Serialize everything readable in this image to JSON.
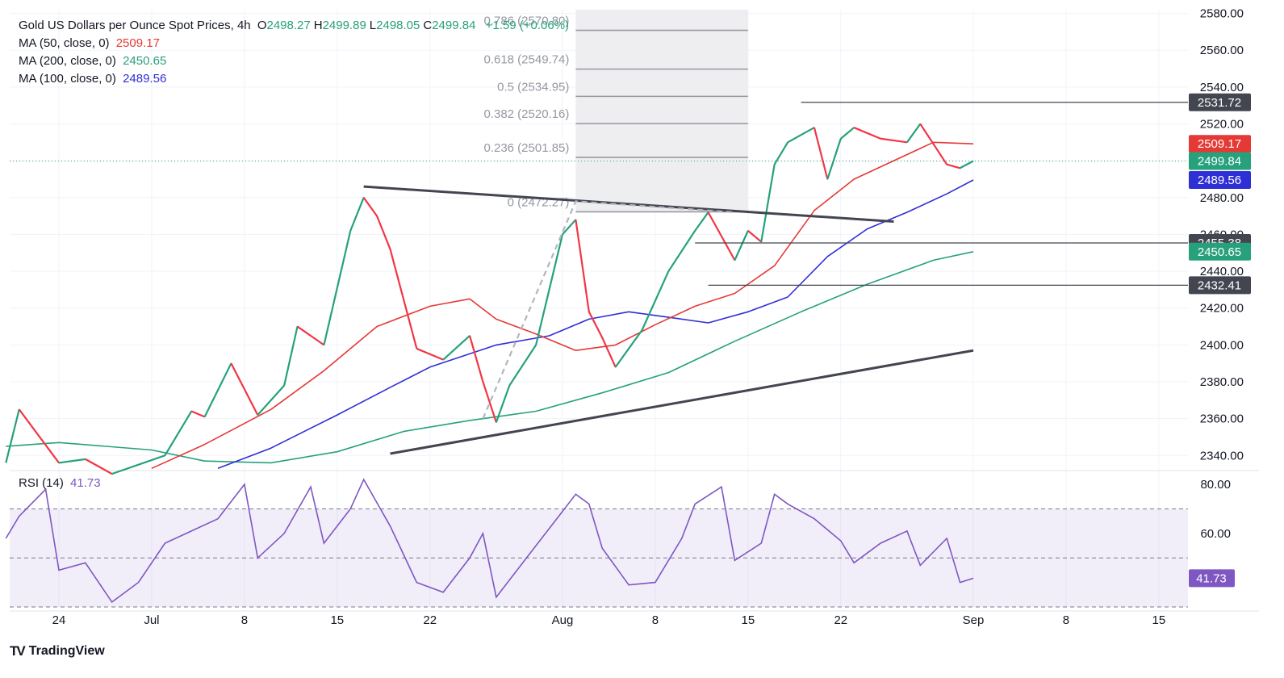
{
  "header": {
    "symbol": "Gold US Dollars per Ounce Spot Prices, 4h",
    "ohlc": [
      {
        "k": "O",
        "v": "2498.27"
      },
      {
        "k": "H",
        "v": "2499.89"
      },
      {
        "k": "L",
        "v": "2498.05"
      },
      {
        "k": "C",
        "v": "2499.84"
      }
    ],
    "change": "+1.59 (+0.06%)"
  },
  "indicators": [
    {
      "label": "MA (50, close, 0)",
      "value": "2509.17",
      "color": "#e53935"
    },
    {
      "label": "MA (200, close, 0)",
      "value": "2450.65",
      "color": "#26a17b"
    },
    {
      "label": "MA (100, close, 0)",
      "value": "2489.56",
      "color": "#2f2fd6"
    }
  ],
  "rsi": {
    "label": "RSI (14)",
    "value": "41.73",
    "color": "#7e57c2"
  },
  "brand": "TradingView",
  "chart_data": [
    {
      "type": "line",
      "title": "Gold US Dollars per Ounce Spot Prices, 4h",
      "y_axis": {
        "range": [
          2334,
          2582
        ],
        "ticks": [
          "2340.00",
          "2360.00",
          "2380.00",
          "2400.00",
          "2420.00",
          "2440.00",
          "2460.00",
          "2480.00",
          "2500.00",
          "2520.00",
          "2540.00",
          "2560.00",
          "2580.00"
        ]
      },
      "x_axis": {
        "ticks": [
          {
            "label": "24",
            "date": "2024-06-24"
          },
          {
            "label": "Jul",
            "date": "2024-07-01"
          },
          {
            "label": "8",
            "date": "2024-07-08"
          },
          {
            "label": "15",
            "date": "2024-07-15"
          },
          {
            "label": "22",
            "date": "2024-07-22"
          },
          {
            "label": "Aug",
            "date": "2024-08-01"
          },
          {
            "label": "8",
            "date": "2024-08-08"
          },
          {
            "label": "15",
            "date": "2024-08-15"
          },
          {
            "label": "22",
            "date": "2024-08-22"
          },
          {
            "label": "Sep",
            "date": "2024-09-01"
          },
          {
            "label": "8",
            "date": "2024-09-08"
          },
          {
            "label": "15",
            "date": "2024-09-15"
          }
        ]
      },
      "price": {
        "date": [
          "2024-06-20",
          "2024-06-21",
          "2024-06-24",
          "2024-06-26",
          "2024-06-28",
          "2024-07-02",
          "2024-07-04",
          "2024-07-05",
          "2024-07-07",
          "2024-07-09",
          "2024-07-11",
          "2024-07-12",
          "2024-07-14",
          "2024-07-16",
          "2024-07-17",
          "2024-07-18",
          "2024-07-19",
          "2024-07-21",
          "2024-07-23",
          "2024-07-25",
          "2024-07-26",
          "2024-07-27",
          "2024-07-28",
          "2024-07-30",
          "2024-08-01",
          "2024-08-02",
          "2024-08-03",
          "2024-08-04",
          "2024-08-05",
          "2024-08-07",
          "2024-08-09",
          "2024-08-11",
          "2024-08-12",
          "2024-08-14",
          "2024-08-15",
          "2024-08-16",
          "2024-08-17",
          "2024-08-18",
          "2024-08-20",
          "2024-08-21",
          "2024-08-22",
          "2024-08-23",
          "2024-08-25",
          "2024-08-27",
          "2024-08-28",
          "2024-08-30",
          "2024-08-31",
          "2024-09-01"
        ],
        "close": [
          2336,
          2365,
          2336,
          2338,
          2330,
          2340,
          2364,
          2361,
          2390,
          2362,
          2378,
          2410,
          2400,
          2462,
          2480,
          2470,
          2452,
          2398,
          2392,
          2405,
          2380,
          2358,
          2378,
          2400,
          2460,
          2468,
          2418,
          2404,
          2388,
          2408,
          2440,
          2462,
          2472,
          2446,
          2462,
          2456,
          2498,
          2510,
          2518,
          2490,
          2512,
          2518,
          2512,
          2510,
          2520,
          2498,
          2496,
          2499.84
        ]
      },
      "ma50": {
        "date": [
          "2024-07-01",
          "2024-07-05",
          "2024-07-10",
          "2024-07-14",
          "2024-07-18",
          "2024-07-22",
          "2024-07-25",
          "2024-07-27",
          "2024-07-30",
          "2024-08-02",
          "2024-08-05",
          "2024-08-08",
          "2024-08-11",
          "2024-08-14",
          "2024-08-17",
          "2024-08-20",
          "2024-08-23",
          "2024-08-26",
          "2024-08-29",
          "2024-09-01"
        ],
        "value": [
          2333,
          2346,
          2365,
          2386,
          2410,
          2421,
          2425,
          2414,
          2406,
          2397,
          2400,
          2411,
          2421,
          2428,
          2443,
          2473,
          2490,
          2500,
          2510,
          2509.17
        ]
      },
      "ma100": {
        "date": [
          "2024-07-06",
          "2024-07-10",
          "2024-07-15",
          "2024-07-19",
          "2024-07-22",
          "2024-07-27",
          "2024-07-31",
          "2024-08-03",
          "2024-08-06",
          "2024-08-09",
          "2024-08-12",
          "2024-08-15",
          "2024-08-18",
          "2024-08-21",
          "2024-08-24",
          "2024-08-27",
          "2024-08-30",
          "2024-09-01"
        ],
        "value": [
          2333,
          2344,
          2362,
          2377,
          2388,
          2400,
          2405,
          2414,
          2418,
          2415,
          2412,
          2418,
          2426,
          2448,
          2463,
          2472,
          2482,
          2489.56
        ]
      },
      "ma200": {
        "date": [
          "2024-06-20",
          "2024-06-24",
          "2024-07-01",
          "2024-07-05",
          "2024-07-10",
          "2024-07-15",
          "2024-07-20",
          "2024-07-25",
          "2024-07-30",
          "2024-08-04",
          "2024-08-09",
          "2024-08-14",
          "2024-08-19",
          "2024-08-24",
          "2024-08-29",
          "2024-09-01"
        ],
        "value": [
          2345,
          2347,
          2343,
          2337,
          2336,
          2342,
          2353,
          2359,
          2364,
          2374,
          2385,
          2402,
          2418,
          2433,
          2446,
          2450.65
        ]
      },
      "trendlines": [
        {
          "from": {
            "date": "2024-07-17",
            "value": 2486
          },
          "to": {
            "date": "2024-08-26",
            "value": 2467
          }
        },
        {
          "from": {
            "date": "2024-07-19",
            "value": 2341
          },
          "to": {
            "date": "2024-09-01",
            "value": 2397
          }
        }
      ],
      "horizontal_levels": [
        {
          "value": 2531.72,
          "label": "2531.72",
          "from": "2024-08-19",
          "color": "#434651"
        },
        {
          "value": 2455.38,
          "label": "2455.38",
          "from": "2024-08-11",
          "color": "#434651"
        },
        {
          "value": 2432.41,
          "label": "2432.41",
          "from": "2024-08-12",
          "color": "#434651"
        }
      ],
      "fibonacci": {
        "from": "2024-08-02",
        "to": "2024-08-15",
        "levels": [
          {
            "ratio": "0.786",
            "value": 2570.8,
            "label": "0.786 (2570.80)"
          },
          {
            "ratio": "0.618",
            "value": 2549.74,
            "label": "0.618 (2549.74)"
          },
          {
            "ratio": "0.5",
            "value": 2534.95,
            "label": "0.5 (2534.95)"
          },
          {
            "ratio": "0.382",
            "value": 2520.16,
            "label": "0.382 (2520.16)"
          },
          {
            "ratio": "0.236",
            "value": 2501.85,
            "label": "0.236 (2501.85)"
          },
          {
            "ratio": "0",
            "value": 2472.27,
            "label": "0 (2472.27)"
          }
        ]
      },
      "dashed_projection": {
        "from": {
          "date": "2024-07-26",
          "value": 2360
        },
        "to": {
          "date": "2024-08-02",
          "value": 2478
        },
        "end": {
          "date": "2024-08-14",
          "value": 2472
        }
      },
      "axis_badges": [
        {
          "value": 2531.72,
          "label": "2531.72",
          "color": "#434651"
        },
        {
          "value": 2509.17,
          "label": "2509.17",
          "color": "#e53935"
        },
        {
          "value": 2499.84,
          "label": "2499.84",
          "color": "#26a17b"
        },
        {
          "value": 2489.56,
          "label": "2489.56",
          "color": "#2f2fd6"
        },
        {
          "value": 2455.38,
          "label": "2455.38",
          "color": "#434651"
        },
        {
          "value": 2450.65,
          "label": "2450.65",
          "color": "#26a17b"
        },
        {
          "value": 2432.41,
          "label": "2432.41",
          "color": "#434651"
        }
      ],
      "last_price": 2499.84
    },
    {
      "type": "line",
      "title": "RSI (14)",
      "y_axis": {
        "range": [
          30,
          84
        ],
        "ticks": [
          "80.00",
          "60.00"
        ]
      },
      "bands": [
        30,
        50,
        70
      ],
      "rsi": {
        "date": [
          "2024-06-20",
          "2024-06-21",
          "2024-06-23",
          "2024-06-24",
          "2024-06-26",
          "2024-06-28",
          "2024-06-30",
          "2024-07-02",
          "2024-07-04",
          "2024-07-06",
          "2024-07-08",
          "2024-07-09",
          "2024-07-11",
          "2024-07-13",
          "2024-07-14",
          "2024-07-16",
          "2024-07-17",
          "2024-07-19",
          "2024-07-21",
          "2024-07-23",
          "2024-07-25",
          "2024-07-26",
          "2024-07-27",
          "2024-07-29",
          "2024-07-31",
          "2024-08-02",
          "2024-08-03",
          "2024-08-04",
          "2024-08-06",
          "2024-08-08",
          "2024-08-10",
          "2024-08-11",
          "2024-08-13",
          "2024-08-14",
          "2024-08-16",
          "2024-08-17",
          "2024-08-18",
          "2024-08-20",
          "2024-08-22",
          "2024-08-23",
          "2024-08-25",
          "2024-08-27",
          "2024-08-28",
          "2024-08-30",
          "2024-08-31",
          "2024-09-01"
        ],
        "value": [
          58,
          67,
          78,
          45,
          48,
          32,
          40,
          56,
          61,
          66,
          80,
          50,
          60,
          79,
          56,
          70,
          82,
          63,
          40,
          36,
          50,
          60,
          34,
          48,
          62,
          76,
          72,
          54,
          39,
          40,
          58,
          72,
          79,
          49,
          56,
          76,
          72,
          66,
          57,
          48,
          56,
          61,
          47,
          58,
          40,
          41.73
        ]
      },
      "last_value": 41.73
    }
  ]
}
